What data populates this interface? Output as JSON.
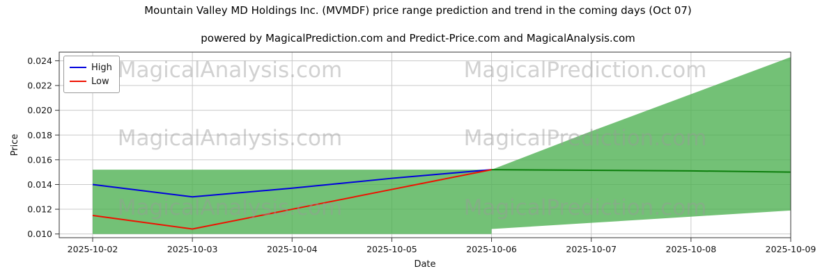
{
  "watermarks": {
    "analysis": "MagicalAnalysis.com",
    "prediction": "MagicalPrediction.com"
  },
  "legend": [
    {
      "label": "High",
      "color": "#0000dd"
    },
    {
      "label": "Low",
      "color": "#ee1100"
    }
  ],
  "chart_data": {
    "type": "line",
    "title": "Mountain Valley MD Holdings Inc. (MVMDF) price range prediction and trend in the coming days (Oct 07)",
    "subtitle": "powered by MagicalPrediction.com and Predict-Price.com and MagicalAnalysis.com",
    "xlabel": "Date",
    "ylabel": "Price",
    "categories": [
      "2025-10-02",
      "2025-10-03",
      "2025-10-04",
      "2025-10-05",
      "2025-10-06",
      "2025-10-07",
      "2025-10-08",
      "2025-10-09"
    ],
    "ylim": [
      0.0097,
      0.0247
    ],
    "yticks": [
      0.01,
      0.012,
      0.014,
      0.016,
      0.018,
      0.02,
      0.022,
      0.024
    ],
    "grid": true,
    "legend_position": "upper left",
    "colors": {
      "band": "#4caf50",
      "band_opacity": 0.78,
      "grid": "#c9c9c9",
      "axis": "#333333",
      "text": "#111111",
      "watermark": "#9a9a9a"
    },
    "series": [
      {
        "name": "High",
        "color": "#0000dd",
        "x": [
          "2025-10-02",
          "2025-10-03",
          "2025-10-04",
          "2025-10-05",
          "2025-10-06"
        ],
        "values": [
          0.014,
          0.013,
          0.0137,
          0.0145,
          0.0152
        ]
      },
      {
        "name": "Low",
        "color": "#ee1100",
        "x": [
          "2025-10-02",
          "2025-10-03",
          "2025-10-04",
          "2025-10-05",
          "2025-10-06"
        ],
        "values": [
          0.0115,
          0.0104,
          0.012,
          0.0136,
          0.0152
        ]
      },
      {
        "name": "Forecast",
        "color": "#0b7d0b",
        "x": [
          "2025-10-06",
          "2025-10-07",
          "2025-10-08",
          "2025-10-09"
        ],
        "values": [
          0.0152,
          0.01515,
          0.0151,
          0.015
        ]
      }
    ],
    "bands": [
      {
        "name": "historical-range",
        "x": [
          "2025-10-02",
          "2025-10-03",
          "2025-10-04",
          "2025-10-05",
          "2025-10-06"
        ],
        "top": [
          0.0152,
          0.0152,
          0.0152,
          0.0152,
          0.0152
        ],
        "bottom": [
          0.01,
          0.01,
          0.01,
          0.01,
          0.01
        ]
      },
      {
        "name": "forecast-range",
        "x": [
          "2025-10-06",
          "2025-10-07",
          "2025-10-08",
          "2025-10-09"
        ],
        "top": [
          0.0152,
          0.0183,
          0.0213,
          0.0243
        ],
        "bottom": [
          0.0104,
          0.0109,
          0.0114,
          0.0119
        ]
      }
    ]
  }
}
